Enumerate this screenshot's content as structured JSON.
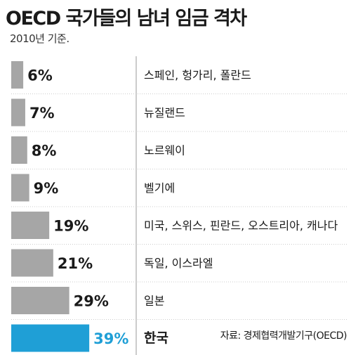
{
  "title": "OECD 국가들의 남녀 임금 격차",
  "subtitle": "2010년 기준.",
  "source": "자료: 경제협력개발기구(OECD)",
  "colors": {
    "bar": "#a6a6a6",
    "highlight_bar": "#1f9fd6",
    "highlight_text": "#1f9fd6",
    "divider": "#999999"
  },
  "chart_data": {
    "type": "bar",
    "orientation": "horizontal",
    "title": "OECD 국가들의 남녀 임금 격차",
    "subtitle": "2010년 기준.",
    "categories": [
      "스페인, 헝가리, 폴란드",
      "뉴질랜드",
      "노르웨이",
      "벨기에",
      "미국, 스위스, 핀란드, 오스트리아, 캐나다",
      "독일, 이스라엘",
      "일본",
      "한국"
    ],
    "values": [
      6,
      7,
      8,
      9,
      19,
      21,
      29,
      39
    ],
    "value_labels": [
      "6%",
      "7%",
      "8%",
      "9%",
      "19%",
      "21%",
      "29%",
      "39%"
    ],
    "highlight_index": 7,
    "unit": "%",
    "grid": false,
    "legend": "none"
  }
}
